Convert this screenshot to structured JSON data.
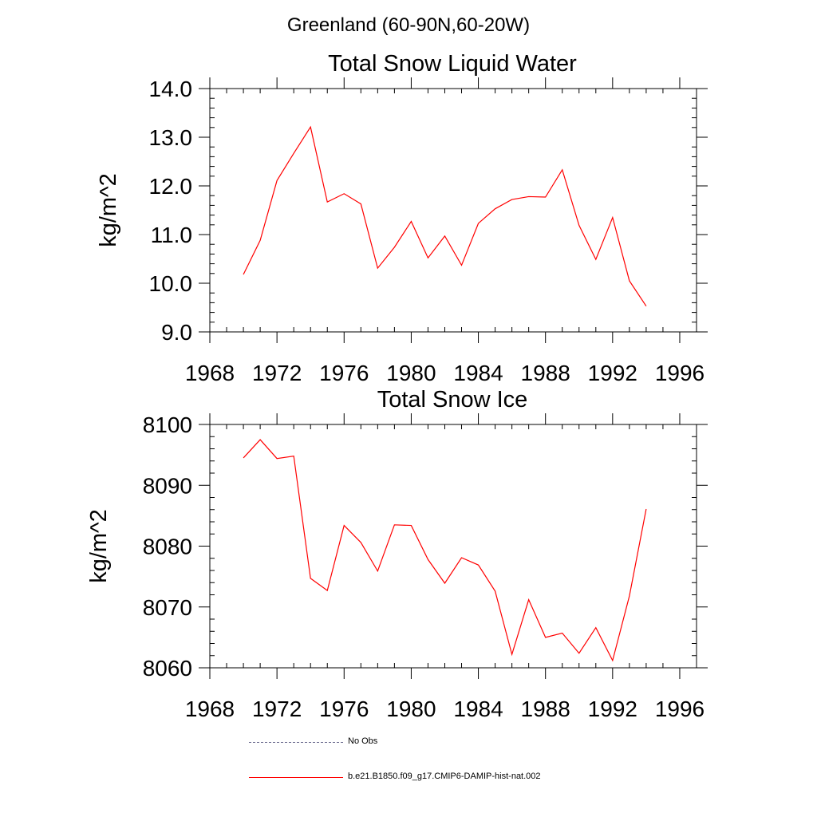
{
  "page": {
    "title": "Greenland (60-90N,60-20W)"
  },
  "colors": {
    "series": "#ff0000",
    "obs": "#6b6b8e",
    "axis": "#000000"
  },
  "chart_data": [
    {
      "type": "line",
      "title": "Total Snow Liquid Water",
      "xlabel": "",
      "ylabel": "kg/m^2",
      "xlim": [
        1968,
        1997
      ],
      "ylim": [
        9.0,
        14.0
      ],
      "xticks": [
        1968,
        1972,
        1976,
        1980,
        1984,
        1988,
        1992,
        1996
      ],
      "xtick_labels": [
        "1968",
        "1972",
        "1976",
        "1980",
        "1984",
        "1988",
        "1992",
        "1996"
      ],
      "yticks": [
        9.0,
        10.0,
        11.0,
        12.0,
        13.0,
        14.0
      ],
      "ytick_labels": [
        "9.0",
        "10.0",
        "11.0",
        "12.0",
        "13.0",
        "14.0"
      ],
      "x": [
        1970,
        1971,
        1972,
        1973,
        1974,
        1975,
        1976,
        1977,
        1978,
        1979,
        1980,
        1981,
        1982,
        1983,
        1984,
        1985,
        1986,
        1987,
        1988,
        1989,
        1990,
        1991,
        1992,
        1993,
        1994
      ],
      "series": [
        {
          "values": [
            10.18,
            10.88,
            12.11,
            12.67,
            13.21,
            11.67,
            11.84,
            11.63,
            10.31,
            10.74,
            11.27,
            10.52,
            10.97,
            10.37,
            11.23,
            11.53,
            11.72,
            11.78,
            11.77,
            12.33,
            11.19,
            10.49,
            11.35,
            10.05,
            9.53
          ]
        }
      ],
      "legend": "none"
    },
    {
      "type": "line",
      "title": "Total Snow Ice",
      "xlabel": "",
      "ylabel": "kg/m^2",
      "xlim": [
        1968,
        1997
      ],
      "ylim": [
        8060,
        8100
      ],
      "xticks": [
        1968,
        1972,
        1976,
        1980,
        1984,
        1988,
        1992,
        1996
      ],
      "xtick_labels": [
        "1968",
        "1972",
        "1976",
        "1980",
        "1984",
        "1988",
        "1992",
        "1996"
      ],
      "yticks": [
        8060,
        8070,
        8080,
        8090,
        8100
      ],
      "ytick_labels": [
        "8060",
        "8070",
        "8080",
        "8090",
        "8100"
      ],
      "x": [
        1970,
        1971,
        1972,
        1973,
        1974,
        1975,
        1976,
        1977,
        1978,
        1979,
        1980,
        1981,
        1982,
        1983,
        1984,
        1985,
        1986,
        1987,
        1988,
        1989,
        1990,
        1991,
        1992,
        1993,
        1994
      ],
      "series": [
        {
          "values": [
            8094.5,
            8097.5,
            8094.4,
            8094.8,
            8074.7,
            8072.7,
            8083.4,
            8080.6,
            8075.9,
            8083.5,
            8083.4,
            8077.8,
            8073.9,
            8078.1,
            8076.9,
            8072.6,
            8062.2,
            8071.2,
            8065.0,
            8065.7,
            8062.4,
            8066.6,
            8061.2,
            8071.8,
            8086.1
          ]
        }
      ],
      "legend": "bottom"
    }
  ],
  "legend": {
    "items": [
      {
        "label": "No Obs",
        "style": "dashed",
        "color": "#6b6b8e"
      },
      {
        "label": "b.e21.B1850.f09_g17.CMIP6-DAMIP-hist-nat.002",
        "style": "solid",
        "color": "#ff0000"
      }
    ]
  }
}
